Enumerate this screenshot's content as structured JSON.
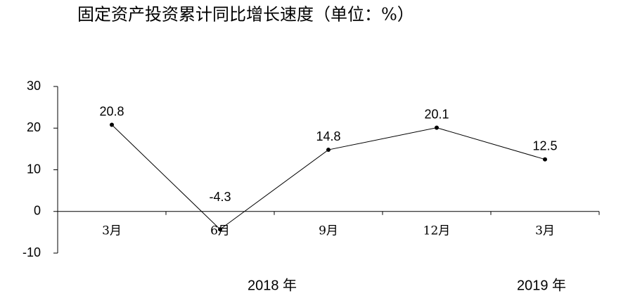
{
  "chart_data": {
    "type": "line",
    "title": "固定资产投资累计同比增长速度（单位：%）",
    "categories": [
      "3月",
      "6月",
      "9月",
      "12月",
      "3月"
    ],
    "series": [
      {
        "color": "#000000",
        "values": [
          20.8,
          -4.3,
          14.8,
          20.1,
          12.5
        ]
      }
    ],
    "ylim": [
      -10,
      30
    ],
    "yticks": [
      -10,
      0,
      10,
      20,
      30
    ],
    "annotations": [
      "2018 年",
      "2019 年"
    ]
  }
}
